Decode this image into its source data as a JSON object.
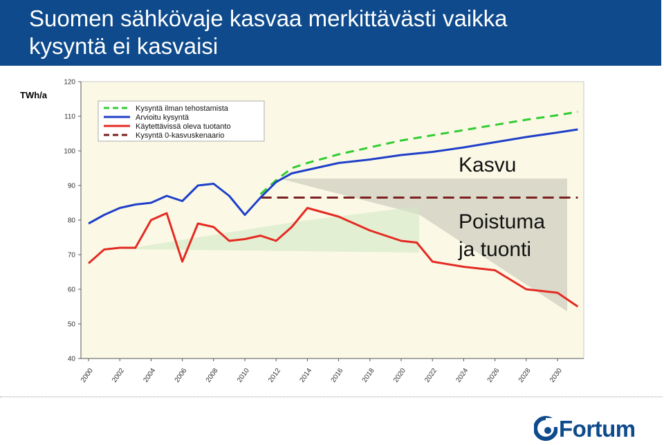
{
  "header": {
    "title_line1": "Suomen sähkövaje kasvaa merkittävästi vaikka",
    "title_line2": "kysyntä ei kasvaisi"
  },
  "unit_label": "TWh/a",
  "annotations": {
    "kasvu": "Kasvu",
    "poistuma_line1": "Poistuma",
    "poistuma_line2": "ja tuonti"
  },
  "logo": {
    "text": "Fortum",
    "color": "#0e4a8c"
  },
  "colors": {
    "title_bar": "#0e4a8c",
    "plot_background": "#fbf9e6",
    "demand_no_efficiency": "#33cc33",
    "estimated_demand": "#1f3fc8",
    "available_production": "#e42a22",
    "zero_growth": "#7a1f1f"
  },
  "chart_data": {
    "type": "line",
    "ylim": [
      40,
      120
    ],
    "yticks": [
      40,
      50,
      60,
      70,
      80,
      90,
      100,
      110,
      120
    ],
    "xticks": [
      "2000",
      "2002",
      "2004",
      "2006",
      "2008",
      "2010",
      "2012",
      "2014",
      "2016",
      "2018",
      "2020",
      "2022",
      "2024",
      "2026",
      "2028",
      "2030"
    ],
    "legend_position": "top-left",
    "grid": false,
    "series": [
      {
        "name": "Kysyntä ilman tehostamista",
        "color": "#33cc33",
        "style": "dashed",
        "points": [
          [
            2011,
            87.5
          ],
          [
            2012,
            91.5
          ],
          [
            2013,
            95
          ],
          [
            2014,
            96.5
          ],
          [
            2016,
            99
          ],
          [
            2018,
            101
          ],
          [
            2020,
            103
          ],
          [
            2022,
            104.5
          ],
          [
            2024,
            106
          ],
          [
            2026,
            107.5
          ],
          [
            2028,
            109
          ],
          [
            2030,
            110.3
          ],
          [
            2031.3,
            111.3
          ]
        ]
      },
      {
        "name": "Arvioitu kysyntä",
        "color": "#1f3fc8",
        "style": "solid",
        "points": [
          [
            2000,
            79
          ],
          [
            2001,
            81.5
          ],
          [
            2002,
            83.5
          ],
          [
            2003,
            84.5
          ],
          [
            2004,
            85
          ],
          [
            2005,
            87
          ],
          [
            2006,
            85.5
          ],
          [
            2007,
            90
          ],
          [
            2008,
            90.5
          ],
          [
            2009,
            87
          ],
          [
            2010,
            81.5
          ],
          [
            2011,
            86.5
          ],
          [
            2012,
            91
          ],
          [
            2013,
            93.5
          ],
          [
            2014,
            94.5
          ],
          [
            2016,
            96.5
          ],
          [
            2018,
            97.5
          ],
          [
            2020,
            98.8
          ],
          [
            2022,
            99.7
          ],
          [
            2024,
            101
          ],
          [
            2026,
            102.5
          ],
          [
            2028,
            104
          ],
          [
            2030,
            105.3
          ],
          [
            2031.3,
            106.2
          ]
        ]
      },
      {
        "name": "Käytettävissä oleva tuotanto",
        "color": "#e42a22",
        "style": "solid",
        "points": [
          [
            2000,
            67.5
          ],
          [
            2001,
            71.5
          ],
          [
            2002,
            72
          ],
          [
            2003,
            72
          ],
          [
            2004,
            80
          ],
          [
            2005,
            82
          ],
          [
            2006,
            68
          ],
          [
            2007,
            79
          ],
          [
            2008,
            78
          ],
          [
            2009,
            74
          ],
          [
            2010,
            74.5
          ],
          [
            2011,
            75.5
          ],
          [
            2012,
            74
          ],
          [
            2013,
            78
          ],
          [
            2014,
            83.5
          ],
          [
            2016,
            81
          ],
          [
            2018,
            77
          ],
          [
            2020,
            74
          ],
          [
            2021,
            73.5
          ],
          [
            2022,
            68
          ],
          [
            2024,
            66.5
          ],
          [
            2026,
            65.5
          ],
          [
            2028,
            60
          ],
          [
            2030,
            59
          ],
          [
            2031.3,
            55
          ]
        ]
      },
      {
        "name": "Kysyntä 0-kasvuskenaario",
        "color": "#7a1f1f",
        "style": "dashed",
        "points": [
          [
            2011,
            86.5
          ],
          [
            2031.3,
            86.5
          ]
        ]
      }
    ]
  }
}
